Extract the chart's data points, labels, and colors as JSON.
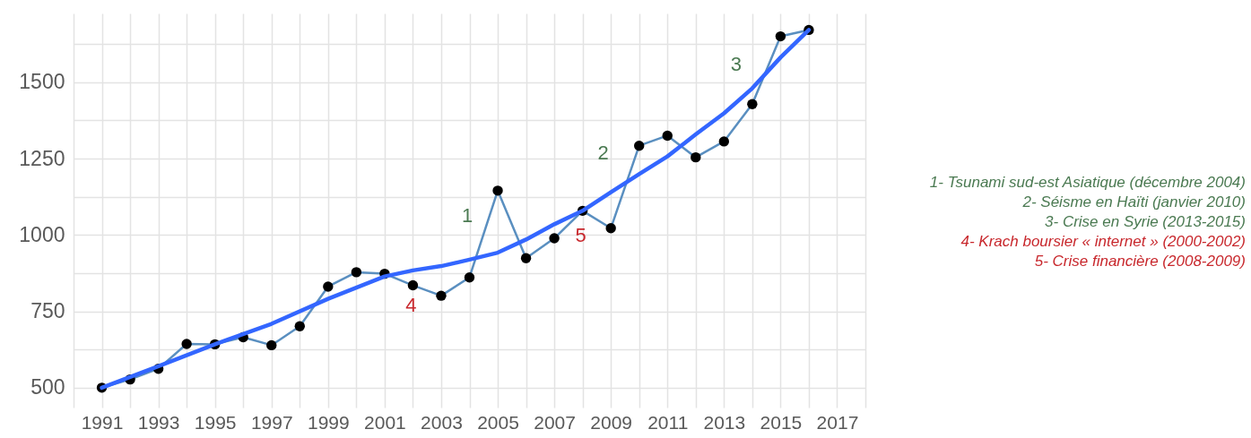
{
  "chart_data": {
    "type": "line",
    "xlim": [
      1990,
      2018
    ],
    "ylim": [
      435,
      1725
    ],
    "xticks": [
      {
        "value": 1990,
        "label": null
      },
      1991,
      {
        "value": 1992,
        "label": null
      },
      1993,
      {
        "value": 1994,
        "label": null
      },
      1995,
      {
        "value": 1996,
        "label": null
      },
      1997,
      {
        "value": 1998,
        "label": null
      },
      1999,
      {
        "value": 2000,
        "label": null
      },
      2001,
      {
        "value": 2002,
        "label": null
      },
      2003,
      {
        "value": 2004,
        "label": null
      },
      2005,
      {
        "value": 2006,
        "label": null
      },
      2007,
      {
        "value": 2008,
        "label": null
      },
      2009,
      {
        "value": 2010,
        "label": null
      },
      2011,
      {
        "value": 2012,
        "label": null
      },
      2013,
      {
        "value": 2014,
        "label": null
      },
      2015,
      {
        "value": 2016,
        "label": null
      },
      2017,
      {
        "value": 2018,
        "label": null
      }
    ],
    "yticks": [
      500,
      {
        "value": 625,
        "label": null
      },
      750,
      {
        "value": 875,
        "label": null
      },
      1000,
      {
        "value": 1125,
        "label": null
      },
      1250,
      {
        "value": 1375,
        "label": null
      },
      1500,
      {
        "value": 1625,
        "label": null
      }
    ],
    "grid": true,
    "x": [
      1991,
      1992,
      1993,
      1994,
      1995,
      1996,
      1997,
      1998,
      1999,
      2000,
      2001,
      2002,
      2003,
      2004,
      2005,
      2006,
      2007,
      2008,
      2009,
      2010,
      2011,
      2012,
      2013,
      2014,
      2015,
      2016
    ],
    "series": [
      {
        "color": "#5a8fc0",
        "marker": "circle",
        "values": [
          500,
          527,
          562,
          643,
          642,
          665,
          639,
          701,
          831,
          878,
          873,
          835,
          801,
          861,
          1145,
          924,
          989,
          1079,
          1022,
          1292,
          1325,
          1254,
          1306,
          1428,
          1650,
          1671
        ]
      },
      {
        "color": "#3366ff",
        "marker": "none",
        "x": [
          1991,
          1993,
          1995,
          1997,
          1999,
          2001,
          2002,
          2003,
          2004,
          2005,
          2006,
          2007,
          2008,
          2009,
          2010,
          2011,
          2012,
          2013,
          2014,
          2015,
          2016
        ],
        "values": [
          500,
          570,
          642,
          709,
          791,
          864,
          884,
          898,
          919,
          942,
          985,
          1035,
          1079,
          1140,
          1199,
          1257,
          1329,
          1398,
          1480,
          1581,
          1671
        ]
      }
    ],
    "annotations": [
      {
        "text": "1",
        "x": 2005,
        "y": 1145
      },
      {
        "text": "2",
        "x": 2010,
        "y": 1292
      },
      {
        "text": "3",
        "x": 2014,
        "y": 1428
      },
      {
        "text": "4",
        "x": 2002,
        "y": 835
      },
      {
        "text": "5",
        "x": 2008,
        "y": 1079
      },
      "1- Tsunami sud-est Asiatique (décembre 2004)",
      "2- Séisme en Haïti (janvier 2010)",
      "3- Crise en Syrie (2013-2015)",
      "4- Krach boursier « internet » (2000-2002)",
      "5- Crise financière (2008-2009)"
    ]
  }
}
